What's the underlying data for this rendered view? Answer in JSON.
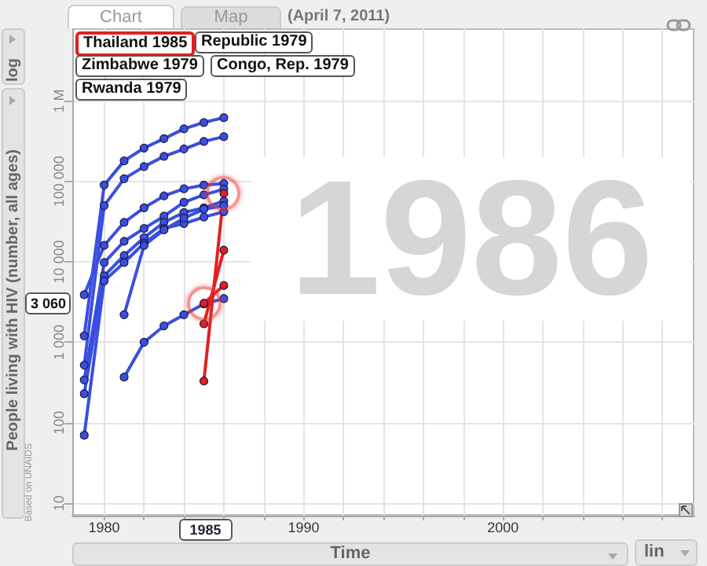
{
  "chart_data": {
    "type": "line",
    "subtitle": "(April 7, 2011)",
    "xlabel": "Time",
    "ylabel": "People living with HIV (number, all ages)",
    "x": [
      1979,
      1980,
      1981,
      1982,
      1983,
      1984,
      1985,
      1986
    ],
    "series": [
      {
        "color": "#3a4fe0",
        "values": [
          1200,
          90000,
          180000,
          260000,
          340000,
          450000,
          540000,
          620000
        ]
      },
      {
        "color": "#3a4fe0",
        "values": [
          520,
          50000,
          108000,
          153000,
          205000,
          253000,
          314000,
          360000
        ]
      },
      {
        "color": "#3a4fe0",
        "values": [
          3900,
          16000,
          31000,
          47000,
          66000,
          81000,
          90000,
          94000
        ]
      },
      {
        "color": "#3a4fe0",
        "values": [
          340,
          9800,
          18000,
          26000,
          37000,
          55000,
          68000,
          80000
        ]
      },
      {
        "color": "#3a4fe0",
        "values": [
          230,
          6700,
          12000,
          20000,
          31000,
          41000,
          47000,
          57000
        ]
      },
      {
        "color": "#3a4fe0",
        "values": [
          70,
          5800,
          9800,
          17000,
          26000,
          30000,
          36000,
          42000
        ]
      },
      {
        "color": "#3a4fe0",
        "values": [
          null,
          null,
          370,
          1000,
          1600,
          2200,
          3000,
          3500
        ]
      },
      {
        "color": "#3a4fe0",
        "values": [
          null,
          null,
          2200,
          16000,
          25000,
          35000,
          45000,
          50000
        ]
      },
      {
        "color": "#e02020",
        "values": [
          null,
          null,
          null,
          null,
          null,
          null,
          330,
          71000
        ]
      },
      {
        "color": "#e02020",
        "values": [
          null,
          null,
          null,
          null,
          null,
          null,
          1700,
          14000
        ]
      },
      {
        "color": "#e02020",
        "values": [
          null,
          null,
          null,
          null,
          null,
          null,
          3060,
          5100
        ]
      }
    ],
    "xlim": [
      1978.4,
      2009.6
    ],
    "xticks": [
      {
        "value": 1980,
        "label": "1980"
      },
      {
        "value": 1982,
        "label": null
      },
      {
        "value": 1984,
        "label": null
      },
      {
        "value": 1986,
        "label": null
      },
      {
        "value": 1988,
        "label": null
      },
      {
        "value": 1990,
        "label": "1990"
      },
      {
        "value": 1992,
        "label": null
      },
      {
        "value": 1994,
        "label": null
      },
      {
        "value": 1996,
        "label": null
      },
      {
        "value": 1998,
        "label": null
      },
      {
        "value": 2000,
        "label": "2000"
      },
      {
        "value": 2002,
        "label": null
      },
      {
        "value": 2004,
        "label": null
      },
      {
        "value": 2006,
        "label": null
      },
      {
        "value": 2008,
        "label": null
      }
    ],
    "ylim": [
      7,
      8000000
    ],
    "yticks": [
      {
        "value": 10,
        "label": "10"
      },
      {
        "value": 100,
        "label": "100"
      },
      {
        "value": 1000,
        "label": "1 000"
      },
      {
        "value": 10000,
        "label": "10 000"
      },
      {
        "value": 100000,
        "label": "100 000"
      },
      {
        "value": 1000000,
        "label": "1 M"
      }
    ],
    "log": "y",
    "grid": true,
    "marker": "circle",
    "annotations": [
      "Chart",
      "Map",
      "log",
      "lin",
      "1986",
      "Based on UNAIDS",
      "Thailand 1985",
      "Republic 1979",
      "Zimbabwe 1979",
      "Rwanda 1979",
      "Congo, Rep. 1979",
      {
        "text": "3 060",
        "y": 3060
      },
      {
        "text": "1985",
        "x": 1985
      }
    ]
  }
}
